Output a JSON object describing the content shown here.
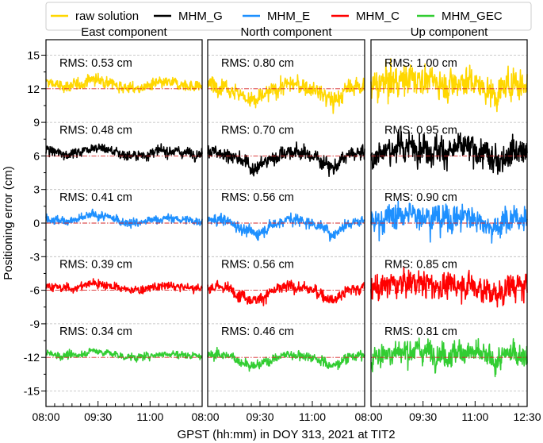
{
  "chart_data": {
    "type": "line",
    "xlabel": "GPST (hh:mm) in DOY 313, 2021 at TIT2",
    "ylabel": "Positioning error (cm)",
    "ylim": [
      -16.4,
      16.4
    ],
    "yticks": [
      15,
      12,
      9,
      6,
      3,
      0,
      -3,
      -6,
      -9,
      -12,
      -15
    ],
    "ytick_labels": [
      "15",
      "12",
      "9",
      "6",
      "3",
      "0",
      "-3",
      "-6",
      "-9",
      "-12",
      "-15"
    ],
    "xlim_minutes": [
      480,
      750
    ],
    "xtick_labels": [
      "08:00",
      "09:30",
      "11:00",
      "12:30"
    ],
    "grid": "dashed horizontal at ±15, ±9, ±3",
    "legend_placement": "top",
    "legend": [
      {
        "name": "raw solution",
        "color": "#FFD700"
      },
      {
        "name": "MHM_G",
        "color": "#000000"
      },
      {
        "name": "MHM_E",
        "color": "#1E90FF"
      },
      {
        "name": "MHM_C",
        "color": "#FF0000"
      },
      {
        "name": "MHM_GEC",
        "color": "#32CD32"
      }
    ],
    "series_offsets_cm": [
      12,
      6,
      0,
      -6,
      -12
    ],
    "panels": [
      {
        "title": "East component",
        "rms": [
          "RMS: 0.53 cm",
          "RMS: 0.48 cm",
          "RMS: 0.41 cm",
          "RMS: 0.39 cm",
          "RMS: 0.34 cm"
        ],
        "rms_values": [
          0.53,
          0.48,
          0.41,
          0.39,
          0.34
        ],
        "trend": [
          0.6,
          0.2,
          0.3,
          0.9,
          0.6,
          0.1,
          0.0,
          0.4,
          0.5,
          0.3,
          0.2
        ]
      },
      {
        "title": "North component",
        "rms": [
          "RMS: 0.80 cm",
          "RMS: 0.70 cm",
          "RMS: 0.56 cm",
          "RMS: 0.56 cm",
          "RMS: 0.46 cm"
        ],
        "rms_values": [
          0.8,
          0.7,
          0.56,
          0.56,
          0.46
        ],
        "trend": [
          0.3,
          0.4,
          -0.4,
          -1.2,
          -0.3,
          0.4,
          0.3,
          -0.2,
          -1.2,
          0.1,
          0.3
        ]
      },
      {
        "title": "Up component",
        "rms": [
          "RMS: 1.00 cm",
          "RMS: 0.95 cm",
          "RMS: 0.90 cm",
          "RMS: 0.85 cm",
          "RMS: 0.81 cm"
        ],
        "rms_values": [
          1.0,
          0.95,
          0.9,
          0.85,
          0.81
        ],
        "trend": [
          0.0,
          0.6,
          0.8,
          1.0,
          0.6,
          0.4,
          0.8,
          0.3,
          -0.6,
          0.6,
          0.3
        ]
      }
    ]
  }
}
